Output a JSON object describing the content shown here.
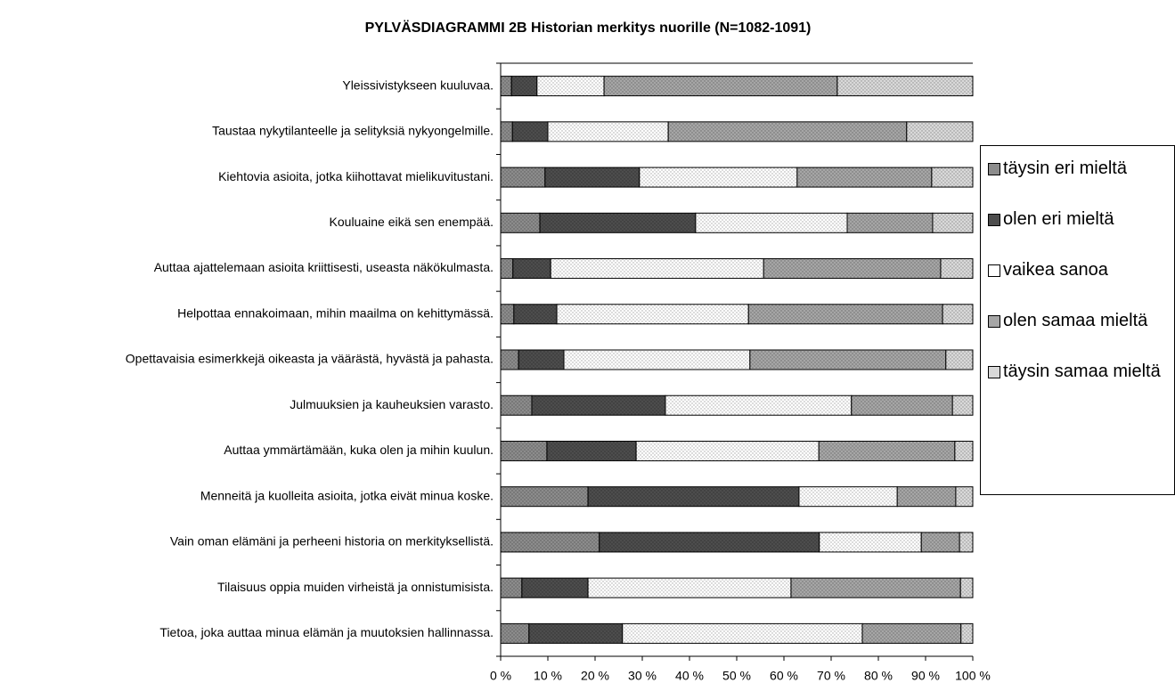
{
  "chart_data": {
    "type": "stacked_barh",
    "title": "PYLVÄSDIAGRAMMI 2B Historian merkitys nuorille (N=1082-1091)",
    "categories": [
      "Yleissivistykseen kuuluvaa.",
      "Taustaa nykytilanteelle ja selityksiä nykyongelmille.",
      "Kiehtovia asioita, jotka kiihottavat mielikuvitustani.",
      "Kouluaine eikä sen enempää.",
      "Auttaa ajattelemaan asioita kriittisesti, useasta näkökulmasta.",
      "Helpottaa ennakoimaan, mihin maailma on kehittymässä.",
      "Opettavaisia esimerkkejä oikeasta ja väärästä, hyvästä ja pahasta.",
      "Julmuuksien ja kauheuksien varasto.",
      "Auttaa ymmärtämään, kuka olen ja mihin kuulun.",
      "Menneitä ja kuolleita asioita, jotka eivät minua koske.",
      "Vain oman elämäni ja perheeni historia on merkityksellistä.",
      "Tilaisuus oppia muiden virheistä ja onnistumisista.",
      "Tietoa, joka auttaa minua elämän ja muutoksien hallinnassa."
    ],
    "series": [
      {
        "name": "täysin eri mieltä",
        "color": "#8c8c8c",
        "values": [
          2.3,
          2.5,
          9.4,
          8.3,
          2.6,
          2.8,
          3.8,
          6.6,
          9.8,
          18.5,
          20.9,
          4.5,
          6.0
        ]
      },
      {
        "name": "olen eri mieltä",
        "color": "#4d4d4d",
        "values": [
          5.4,
          7.5,
          20.0,
          33.0,
          8.0,
          9.1,
          9.6,
          28.3,
          18.9,
          44.7,
          46.6,
          14.0,
          19.8
        ]
      },
      {
        "name": "vaikea sanoa",
        "color": "#ffffff",
        "values": [
          14.2,
          25.5,
          33.4,
          32.1,
          45.1,
          40.6,
          39.4,
          39.4,
          38.7,
          20.8,
          21.6,
          43.0,
          50.8
        ]
      },
      {
        "name": "olen samaa mieltä",
        "color": "#a6a6a6",
        "values": [
          49.4,
          50.5,
          28.5,
          18.1,
          37.5,
          41.1,
          41.5,
          21.4,
          28.8,
          12.4,
          8.1,
          35.9,
          20.9
        ]
      },
      {
        "name": "täysin samaa mieltä",
        "color": "#d9d9d9",
        "values": [
          28.7,
          14.0,
          8.7,
          8.5,
          6.8,
          6.4,
          5.7,
          4.3,
          3.8,
          3.6,
          2.8,
          2.6,
          2.5
        ]
      }
    ],
    "xlim": [
      0,
      100
    ],
    "xticks": [
      {
        "value": 0,
        "label": "0 %"
      },
      {
        "value": 10,
        "label": "10 %"
      },
      {
        "value": 20,
        "label": "20 %"
      },
      {
        "value": 30,
        "label": "30 %"
      },
      {
        "value": 40,
        "label": "40 %"
      },
      {
        "value": 50,
        "label": "50 %"
      },
      {
        "value": 60,
        "label": "60 %"
      },
      {
        "value": 70,
        "label": "70 %"
      },
      {
        "value": 80,
        "label": "80 %"
      },
      {
        "value": 90,
        "label": "90 %"
      },
      {
        "value": 100,
        "label": "100 %"
      }
    ],
    "legend": "right"
  }
}
